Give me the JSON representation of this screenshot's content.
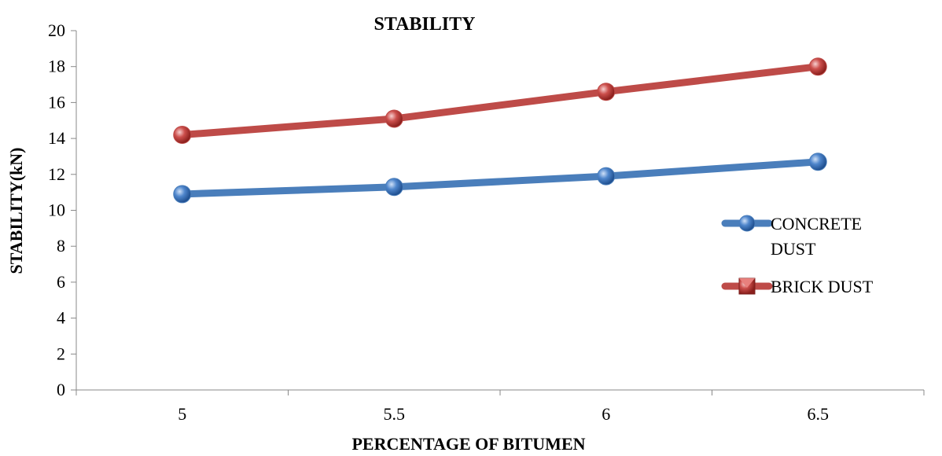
{
  "chart_data": {
    "type": "line",
    "title": "STABILITY",
    "xlabel": "PERCENTAGE OF BITUMEN",
    "ylabel": "STABILITY(kN)",
    "categories": [
      "5",
      "5.5",
      "6",
      "6.5"
    ],
    "ylim": [
      0,
      20
    ],
    "yticks": [
      0,
      2,
      4,
      6,
      8,
      10,
      12,
      14,
      16,
      18,
      20
    ],
    "grid": false,
    "legend_position": "right",
    "series": [
      {
        "name": "CONCRETE DUST",
        "legend_lines": [
          "CONCRETE",
          "DUST"
        ],
        "values": [
          10.9,
          11.3,
          11.9,
          12.7
        ],
        "color": "#4a7ebb",
        "marker": "circle"
      },
      {
        "name": "BRICK DUST",
        "legend_lines": [
          "BRICK DUST"
        ],
        "values": [
          14.2,
          15.1,
          16.6,
          18.0
        ],
        "color": "#be4b48",
        "marker": "square"
      }
    ]
  }
}
